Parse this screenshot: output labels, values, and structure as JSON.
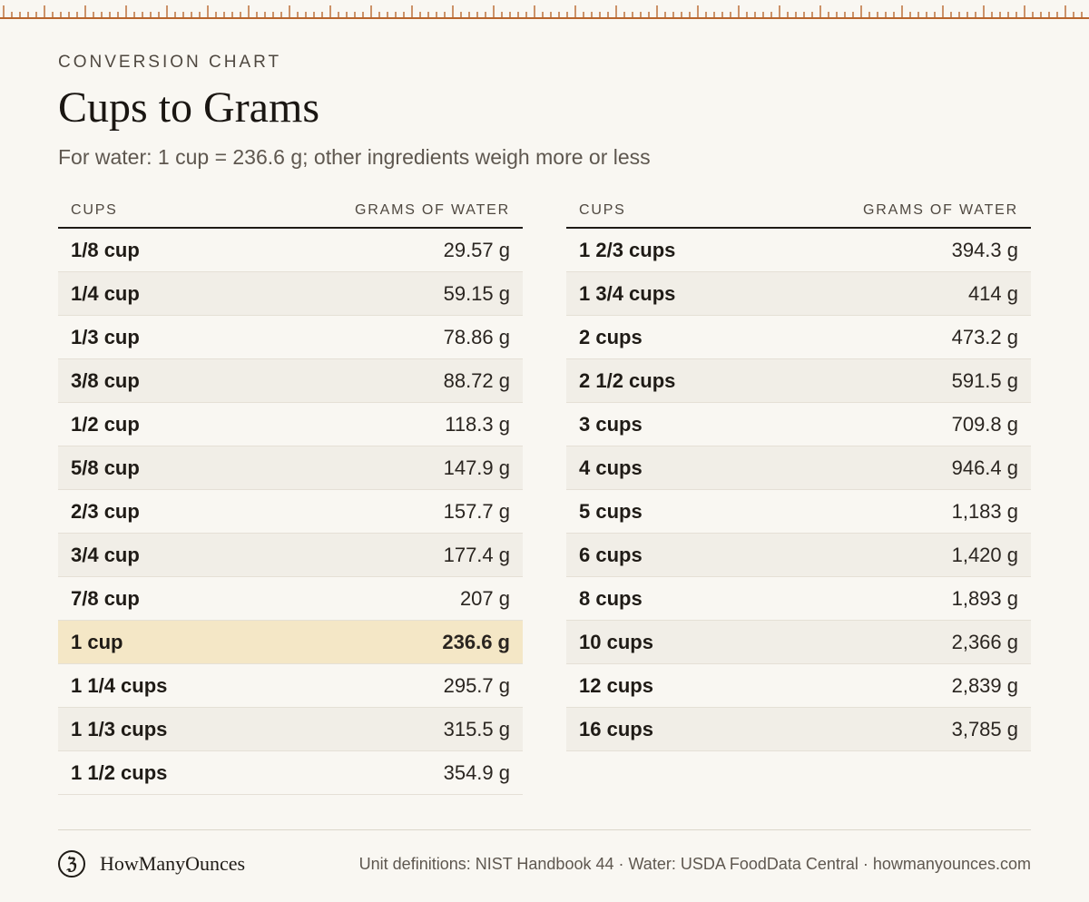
{
  "colors": {
    "background": "#f9f7f2",
    "ruler": "#b8662e",
    "highlight_row": "#f4e7c6",
    "alt_row": "#f1eee7",
    "text": "#1f1b16"
  },
  "header": {
    "eyebrow": "CONVERSION CHART",
    "title": "Cups to Grams",
    "subtitle": "For water: 1 cup = 236.6 g; other ingredients weigh more or less"
  },
  "table": {
    "col_cups": "CUPS",
    "col_grams": "GRAMS OF WATER",
    "highlighted": "1 cup",
    "left_rows": [
      {
        "cups": "1/8 cup",
        "grams": "29.57 g"
      },
      {
        "cups": "1/4 cup",
        "grams": "59.15 g"
      },
      {
        "cups": "1/3 cup",
        "grams": "78.86 g"
      },
      {
        "cups": "3/8 cup",
        "grams": "88.72 g"
      },
      {
        "cups": "1/2 cup",
        "grams": "118.3 g"
      },
      {
        "cups": "5/8 cup",
        "grams": "147.9 g"
      },
      {
        "cups": "2/3 cup",
        "grams": "157.7 g"
      },
      {
        "cups": "3/4 cup",
        "grams": "177.4 g"
      },
      {
        "cups": "7/8 cup",
        "grams": "207 g"
      },
      {
        "cups": "1 cup",
        "grams": "236.6 g"
      },
      {
        "cups": "1 1/4 cups",
        "grams": "295.7 g"
      },
      {
        "cups": "1 1/3 cups",
        "grams": "315.5 g"
      },
      {
        "cups": "1 1/2 cups",
        "grams": "354.9 g"
      }
    ],
    "right_rows": [
      {
        "cups": "1 2/3 cups",
        "grams": "394.3 g"
      },
      {
        "cups": "1 3/4 cups",
        "grams": "414 g"
      },
      {
        "cups": "2 cups",
        "grams": "473.2 g"
      },
      {
        "cups": "2 1/2 cups",
        "grams": "591.5 g"
      },
      {
        "cups": "3 cups",
        "grams": "709.8 g"
      },
      {
        "cups": "4 cups",
        "grams": "946.4 g"
      },
      {
        "cups": "5 cups",
        "grams": "1,183 g"
      },
      {
        "cups": "6 cups",
        "grams": "1,420 g"
      },
      {
        "cups": "8 cups",
        "grams": "1,893 g"
      },
      {
        "cups": "10 cups",
        "grams": "2,366 g"
      },
      {
        "cups": "12 cups",
        "grams": "2,839 g"
      },
      {
        "cups": "16 cups",
        "grams": "3,785 g"
      }
    ]
  },
  "footer": {
    "logo_glyph": "ℨ",
    "logo_icon": "measuring-cup-logo-icon",
    "brand": "HowManyOunces",
    "credits": "Unit definitions: NIST Handbook 44 · Water: USDA FoodData Central · howmanyounces.com"
  }
}
